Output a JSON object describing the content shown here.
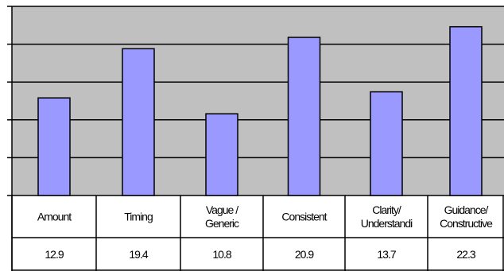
{
  "chart_data": {
    "type": "bar",
    "categories": [
      [
        "Amount"
      ],
      [
        "Timing"
      ],
      [
        "Vague /",
        "Generic"
      ],
      [
        "Consistent"
      ],
      [
        "Clarity/",
        "Understandi"
      ],
      [
        "Guidance/",
        "Constructive"
      ]
    ],
    "values": [
      12.9,
      19.4,
      10.8,
      20.9,
      13.7,
      22.3
    ],
    "value_labels": [
      "12.9",
      "19.4",
      "10.8",
      "20.9",
      "13.7",
      "22.3"
    ],
    "ylim": [
      0,
      25
    ],
    "grid": true,
    "title": "",
    "xlabel": "",
    "ylabel": "",
    "colors": {
      "bar": "#9999ff",
      "plot_background": "#c0c0c0",
      "gridline": "#000000",
      "table_border": "#000000"
    }
  }
}
